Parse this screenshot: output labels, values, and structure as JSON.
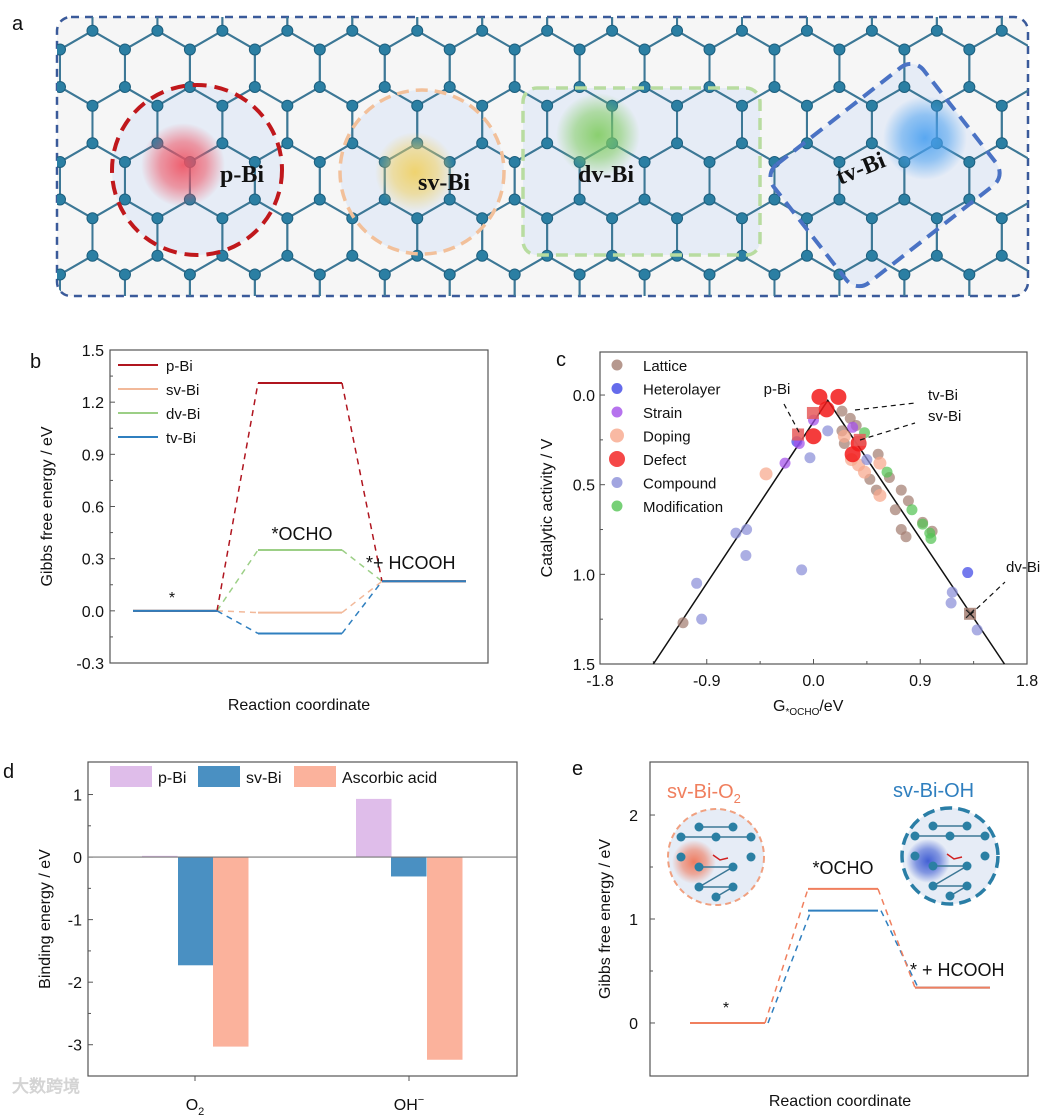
{
  "panel_letters": {
    "a": "a",
    "b": "b",
    "c": "c",
    "d": "d",
    "e": "e"
  },
  "schematic": {
    "labels": [
      "p-Bi",
      "sv-Bi",
      "dv-Bi",
      "tv-Bi"
    ],
    "colors": {
      "p": "#c0181c",
      "sv": "#f2c09a",
      "dv": "#b8dca0",
      "tv": "#4a72c4",
      "frame": "#3a5a9a",
      "bond": "#3d7896",
      "atom": "#2b7fa3"
    }
  },
  "watermark": "大数跨境",
  "chart_data": [
    {
      "id": "b",
      "type": "line",
      "title": "",
      "xlabel": "Reaction coordinate",
      "ylabel": "Gibbs free energy / eV",
      "ylim": [
        -0.3,
        1.5
      ],
      "yticks": [
        "1.5",
        "1.2",
        "0.9",
        "0.6",
        "0.3",
        "0.0",
        "-0.3"
      ],
      "ytick_values": [
        1.5,
        1.2,
        0.9,
        0.6,
        0.3,
        0.0,
        -0.3
      ],
      "steps": [
        "*",
        "*OCHO",
        "* + HCOOH"
      ],
      "step_labels": {
        "start": "*",
        "mid": "*OCHO",
        "end": "*+ HCOOH"
      },
      "legend_position": "top-left",
      "series": [
        {
          "name": "p-Bi",
          "color": "#b0151f",
          "values": [
            0,
            1.31,
            0.17
          ]
        },
        {
          "name": "sv-Bi",
          "color": "#f2b99a",
          "values": [
            0,
            -0.01,
            0.17
          ]
        },
        {
          "name": "dv-Bi",
          "color": "#9ccf86",
          "values": [
            0,
            0.35,
            0.17
          ]
        },
        {
          "name": "tv-Bi",
          "color": "#2f7fbf",
          "values": [
            0,
            -0.13,
            0.17
          ]
        }
      ]
    },
    {
      "id": "c",
      "type": "scatter",
      "xlabel_main": "G",
      "xlabel_sub": "*OCHO",
      "xlabel_tail": "/eV",
      "ylabel": "Catalytic activity / V",
      "xlim": [
        -1.8,
        1.8
      ],
      "ylim": [
        1.5,
        -0.24
      ],
      "xticks": [
        "-1.8",
        "-0.9",
        "0.0",
        "0.9",
        "1.8"
      ],
      "xtick_values": [
        -1.8,
        -0.9,
        0,
        0.9,
        1.8
      ],
      "yticks": [
        "0.0",
        "0.5",
        "1.0",
        "1.5"
      ],
      "ytick_values": [
        0,
        0.5,
        1.0,
        1.5
      ],
      "legend_position": "top-left",
      "volcano_line": [
        [
          -1.35,
          1.5
        ],
        [
          0.12,
          0.03
        ],
        [
          1.61,
          1.5
        ]
      ],
      "series": [
        {
          "name": "Lattice",
          "color": "#a47e72",
          "points": [
            [
              -1.1,
              1.27
            ],
            [
              0.24,
              0.09
            ],
            [
              0.31,
              0.13
            ],
            [
              0.24,
              0.2
            ],
            [
              0.26,
              0.27
            ],
            [
              0.36,
              0.17
            ],
            [
              0.475,
              0.47
            ],
            [
              0.545,
              0.33
            ],
            [
              0.53,
              0.53
            ],
            [
              0.64,
              0.46
            ],
            [
              0.69,
              0.64
            ],
            [
              0.74,
              0.53
            ],
            [
              0.8,
              0.59
            ],
            [
              0.74,
              0.75
            ],
            [
              0.78,
              0.79
            ],
            [
              1.0,
              0.76
            ],
            [
              0.92,
              0.71
            ]
          ]
        },
        {
          "name": "Heterolayer",
          "color": "#3f46e6",
          "points": [
            [
              1.3,
              0.99
            ],
            [
              -0.14,
              0.26
            ]
          ]
        },
        {
          "name": "Strain",
          "color": "#a450ea",
          "points": [
            [
              -0.24,
              0.38
            ],
            [
              -0.12,
              0.27
            ],
            [
              0.0,
              0.14
            ],
            [
              0.33,
              0.18
            ]
          ]
        },
        {
          "name": "Doping",
          "color": "#f7a88c",
          "points": [
            [
              -0.4,
              0.44
            ],
            [
              0.38,
              0.39
            ],
            [
              0.43,
              0.43
            ],
            [
              0.56,
              0.38
            ],
            [
              0.56,
              0.56
            ],
            [
              0.32,
              0.36
            ],
            [
              0.26,
              0.23
            ]
          ]
        },
        {
          "name": "Defect",
          "color": "#f21a1a",
          "points": [
            [
              0.05,
              0.01
            ],
            [
              0.21,
              0.01
            ],
            [
              0.11,
              0.08
            ],
            [
              0.0,
              0.23
            ],
            [
              0.33,
              0.33
            ],
            [
              0.38,
              0.27
            ]
          ]
        },
        {
          "name": "Compound",
          "color": "#8b8fd8",
          "points": [
            [
              -0.985,
              1.05
            ],
            [
              -0.943,
              1.25
            ],
            [
              -0.654,
              0.77
            ],
            [
              -0.564,
              0.75
            ],
            [
              -0.57,
              0.895
            ],
            [
              -0.1,
              0.975
            ],
            [
              -0.03,
              0.35
            ],
            [
              0.12,
              0.2
            ],
            [
              1.17,
              1.1
            ],
            [
              1.16,
              1.16
            ],
            [
              1.38,
              1.31
            ],
            [
              0.45,
              0.36
            ]
          ]
        },
        {
          "name": "Modification",
          "color": "#55c455",
          "points": [
            [
              0.43,
              0.21
            ],
            [
              0.62,
              0.43
            ],
            [
              0.83,
              0.64
            ],
            [
              0.92,
              0.72
            ],
            [
              0.98,
              0.77
            ],
            [
              0.99,
              0.8
            ]
          ]
        }
      ],
      "highlighted": [
        {
          "name": "tv-Bi",
          "point": [
            -0.13,
            0.22
          ],
          "color": "#e65a5a"
        },
        {
          "name": "sv-Bi",
          "point": [
            -0.005,
            0.1
          ],
          "color": "#e65a5a"
        },
        {
          "name": "dv-Bi",
          "point": [
            0.39,
            0.25
          ],
          "color": "#e65a5a"
        },
        {
          "name": "p-Bi",
          "point": [
            1.32,
            1.22
          ],
          "color": "#a47e72"
        }
      ]
    },
    {
      "id": "d",
      "type": "bar",
      "ylabel": "Binding energy / eV",
      "ylim": [
        -3.5,
        1.52
      ],
      "yticks": [
        "1",
        "0",
        "-1",
        "-2",
        "-3"
      ],
      "ytick_values": [
        1,
        0,
        -1,
        -2,
        -3
      ],
      "categories": [
        "O2",
        "OH−"
      ],
      "category_labels": [
        {
          "main": "O",
          "sub": "2",
          "sup": ""
        },
        {
          "main": "OH",
          "sub": "",
          "sup": "−"
        }
      ],
      "legend_position": "top",
      "series": [
        {
          "name": "p-Bi",
          "color": "#dfbdea",
          "values": [
            0.02,
            0.93
          ]
        },
        {
          "name": "sv-Bi",
          "color": "#4a90c2",
          "values": [
            -1.73,
            -0.31
          ]
        },
        {
          "name": "Ascorbic acid",
          "color": "#fbb29c",
          "values": [
            -3.03,
            -3.24
          ]
        }
      ]
    },
    {
      "id": "e",
      "type": "line",
      "xlabel": "Reaction coordinate",
      "ylabel": "Gibbs free energy / eV",
      "ylim": [
        -0.51,
        2.51
      ],
      "yticks": [
        "2",
        "1",
        "0"
      ],
      "ytick_values": [
        2,
        1,
        0
      ],
      "step_labels": {
        "start": "*",
        "mid": "*OCHO",
        "end": "* + HCOOH"
      },
      "series": [
        {
          "name": "sv-Bi-O2",
          "label_main": "sv-Bi-O",
          "label_sub": "2",
          "color": "#f07f5e",
          "values": [
            0,
            1.29,
            0.34
          ]
        },
        {
          "name": "sv-Bi-OH",
          "label_main": "sv-Bi-OH",
          "label_sub": "",
          "color": "#2f7fbf",
          "values": [
            0,
            1.08,
            0.34
          ]
        }
      ]
    }
  ]
}
